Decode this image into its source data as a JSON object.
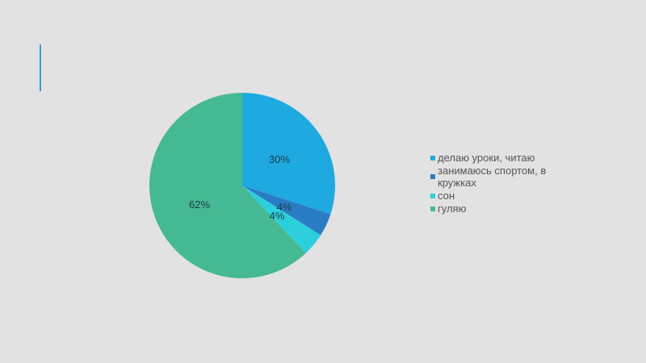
{
  "chart_data": {
    "type": "pie",
    "categories": [
      "делаю уроки, читаю",
      "занимаюсь спортом, в кружках",
      "сон",
      "гуляю"
    ],
    "values": [
      30,
      4,
      4,
      62
    ],
    "labels": [
      "30%",
      "4%",
      "4%",
      "62%"
    ],
    "colors": [
      "#1fa9e1",
      "#2a7dc4",
      "#2dcfdc",
      "#45b993"
    ],
    "legend_position": "right"
  },
  "slide": {
    "accent_color": "#2aa3dc"
  }
}
